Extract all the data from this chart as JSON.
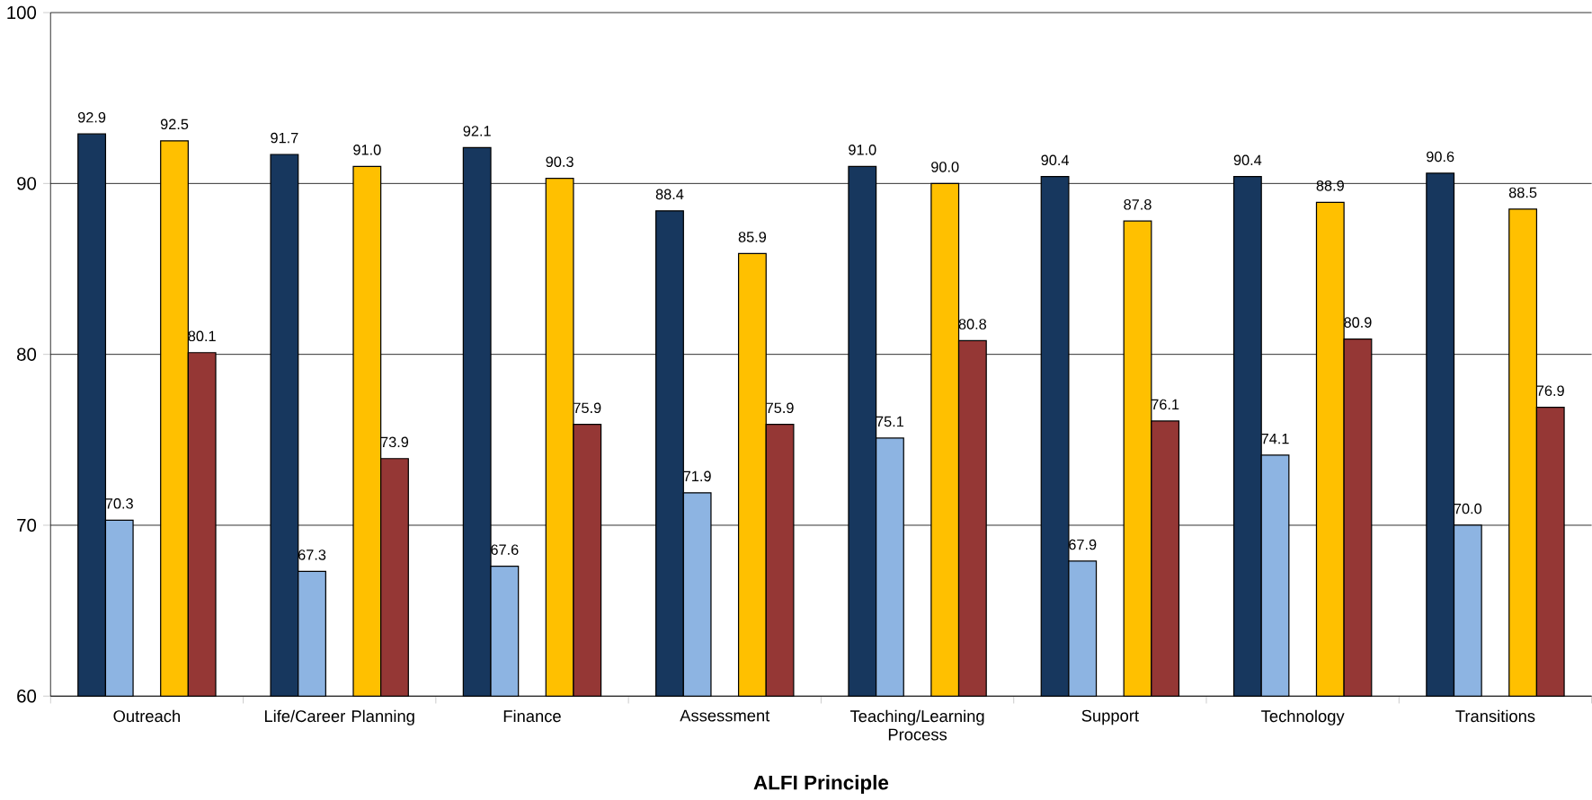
{
  "chart_data": {
    "type": "bar",
    "xlabel": "ALFI Principle",
    "categories": [
      "Outreach",
      "Life/Career Planning",
      "Finance",
      "Assessment",
      "Teaching/Learning Process",
      "Support",
      "Technology",
      "Transitions"
    ],
    "series": [
      {
        "color": "#17375e",
        "values": [
          92.9,
          91.7,
          92.1,
          88.4,
          91.0,
          90.4,
          90.4,
          90.6
        ],
        "value_labels": [
          "92.9",
          "91.7",
          "92.1",
          "88.4",
          "91.0",
          "90.4",
          "90.4",
          "90.6"
        ]
      },
      {
        "color": "#8db4e2",
        "values": [
          70.3,
          67.3,
          67.6,
          71.9,
          75.1,
          67.9,
          74.1,
          70.0
        ],
        "value_labels": [
          "70.3",
          "67.3",
          "67.6",
          "71.9",
          "75.1",
          "67.9",
          "74.1",
          "70.0"
        ]
      },
      {
        "color": "#ffc000",
        "values": [
          92.5,
          91.0,
          90.3,
          85.9,
          90.0,
          87.8,
          88.9,
          88.5
        ],
        "value_labels": [
          "92.5",
          "91.0",
          "90.3",
          "85.9",
          "90.0",
          "87.8",
          "88.9",
          "88.5"
        ]
      },
      {
        "color": "#953735",
        "values": [
          80.1,
          73.9,
          75.9,
          75.9,
          80.8,
          76.1,
          80.9,
          76.9
        ],
        "value_labels": [
          "80.1",
          "73.9",
          "75.9",
          "75.9",
          "80.8",
          "76.1",
          "80.9",
          "76.9"
        ]
      }
    ],
    "ylim": [
      60,
      100
    ],
    "yticks": [
      60,
      70,
      80,
      90,
      100
    ],
    "grid": "y"
  }
}
